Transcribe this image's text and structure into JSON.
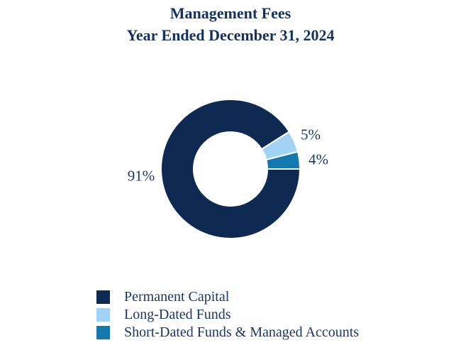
{
  "title": {
    "line1": "Management Fees",
    "line2": "Year Ended December 31, 2024"
  },
  "chart_data": {
    "type": "pie",
    "subtype": "donut",
    "title": "Management Fees — Year Ended December 31, 2024",
    "start_angle_deg": 0,
    "direction": "clockwise",
    "inner_radius_ratio": 0.53,
    "gridlines": false,
    "legend_position": "bottom-left",
    "slices": [
      {
        "label": "Permanent Capital",
        "value_pct": 91,
        "display": "91%",
        "color": "#0e2a52"
      },
      {
        "label": "Long-Dated Funds",
        "value_pct": 5,
        "display": "5%",
        "color": "#a3d3f4"
      },
      {
        "label": "Short-Dated Funds & Managed Accounts",
        "value_pct": 4,
        "display": "4%",
        "color": "#1478ae"
      }
    ]
  },
  "colors": {
    "background": "#ffffff",
    "text": "#1a355f",
    "slice_border": "#ffffff"
  }
}
